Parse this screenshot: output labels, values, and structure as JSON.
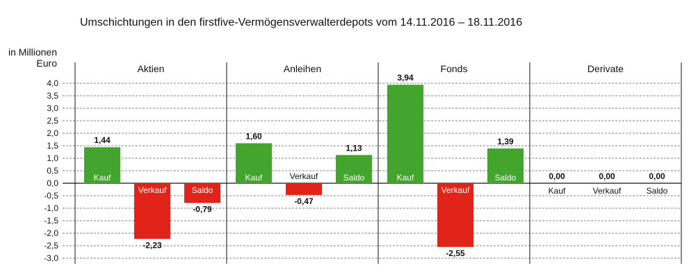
{
  "colors": {
    "positive": "#44a52e",
    "negative": "#e2231a",
    "grid": "#555555"
  },
  "chart_data": {
    "type": "bar",
    "title": "Umschichtungen in den firstfive-Vermögensverwalterdepots vom 14.11.2016 – 18.11.2016",
    "ylabel_line1": "in Millionen",
    "ylabel_line2": "Euro",
    "ylim": [
      -3.0,
      4.0
    ],
    "ytick_step": 0.5,
    "ytick_labels": [
      "4,0",
      "3,5",
      "3,0",
      "2,5",
      "2,0",
      "1,5",
      "1,0",
      "0,5",
      "0,0",
      "-0,5",
      "-1,0",
      "-1,5",
      "-2,0",
      "-2,5",
      "-3,0"
    ],
    "grid": true,
    "groups": [
      {
        "name": "Aktien",
        "bars": [
          {
            "label": "Kauf",
            "value": 1.44,
            "value_label": "1,44"
          },
          {
            "label": "Verkauf",
            "value": -2.23,
            "value_label": "-2,23"
          },
          {
            "label": "Saldo",
            "value": -0.79,
            "value_label": "-0,79"
          }
        ]
      },
      {
        "name": "Anleihen",
        "bars": [
          {
            "label": "Kauf",
            "value": 1.6,
            "value_label": "1,60"
          },
          {
            "label": "Verkauf",
            "value": -0.47,
            "value_label": "-0,47"
          },
          {
            "label": "Saldo",
            "value": 1.13,
            "value_label": "1,13"
          }
        ]
      },
      {
        "name": "Fonds",
        "bars": [
          {
            "label": "Kauf",
            "value": 3.94,
            "value_label": "3,94"
          },
          {
            "label": "Verkauf",
            "value": -2.55,
            "value_label": "-2,55"
          },
          {
            "label": "Saldo",
            "value": 1.39,
            "value_label": "1,39"
          }
        ]
      },
      {
        "name": "Derivate",
        "bars": [
          {
            "label": "Kauf",
            "value": 0.0,
            "value_label": "0,00"
          },
          {
            "label": "Verkauf",
            "value": 0.0,
            "value_label": "0,00"
          },
          {
            "label": "Saldo",
            "value": 0.0,
            "value_label": "0,00"
          }
        ]
      }
    ]
  }
}
